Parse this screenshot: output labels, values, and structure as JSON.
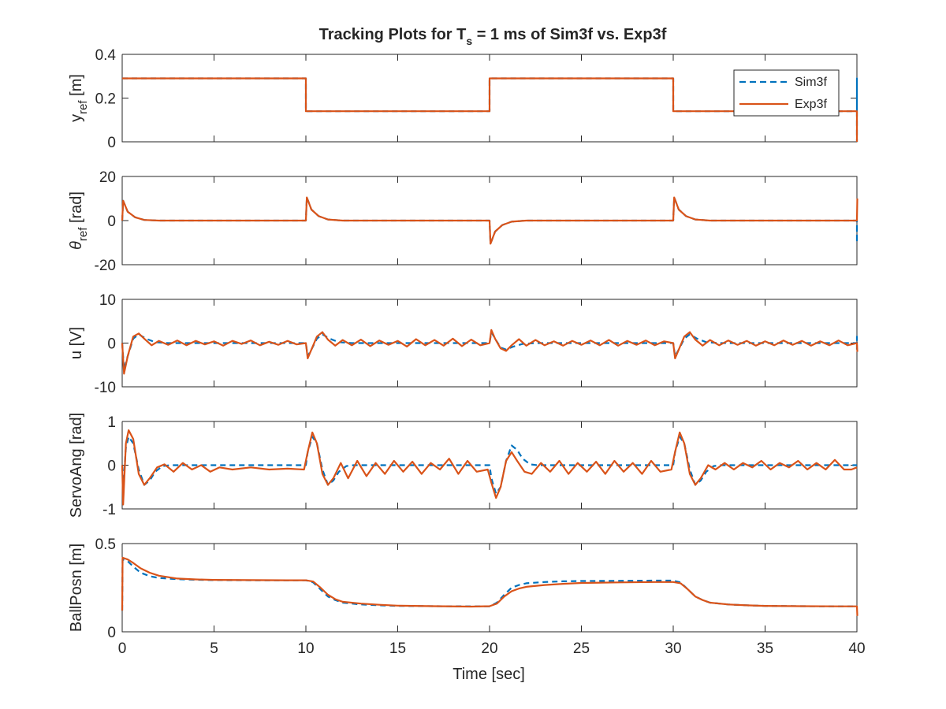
{
  "title": {
    "main": "Tracking Plots for T",
    "sub": "s",
    "rest": " = 1 ms of Sim3f vs. Exp3f"
  },
  "colors": {
    "Sim3f": "#0072BD",
    "Exp3f": "#D95319",
    "axis": "#262626",
    "background": "#ffffff"
  },
  "legend": {
    "placement": "top-right",
    "entries": [
      {
        "label": "Sim3f",
        "style": "dashed"
      },
      {
        "label": "Exp3f",
        "style": "solid"
      }
    ]
  },
  "xaxis": {
    "label": "Time [sec]",
    "ticks": [
      "0",
      "5",
      "10",
      "15",
      "20",
      "25",
      "30",
      "35",
      "40"
    ]
  },
  "panels": [
    {
      "ylabel_main": "y",
      "ylabel_sub": "ref",
      "ylabel_rest": " [m]",
      "yticks": [
        "0",
        "0.2",
        "0.4"
      ]
    },
    {
      "ylabel_main": "θ",
      "ylabel_sub": "ref",
      "ylabel_rest": " [rad]",
      "yticks": [
        "-20",
        "0",
        "20"
      ]
    },
    {
      "ylabel_main": "u [V]",
      "ylabel_sub": "",
      "ylabel_rest": "",
      "yticks": [
        "-10",
        "0",
        "10"
      ]
    },
    {
      "ylabel_main": "ServoAng [rad]",
      "ylabel_sub": "",
      "ylabel_rest": "",
      "yticks": [
        "-1",
        "0",
        "1"
      ]
    },
    {
      "ylabel_main": "BallPosn [m]",
      "ylabel_sub": "",
      "ylabel_rest": "",
      "yticks": [
        "0",
        "0.5"
      ]
    }
  ],
  "chart_data": [
    {
      "type": "line",
      "ylabel": "y_ref [m]",
      "xlim": [
        0,
        40
      ],
      "ylim": [
        0,
        0.4
      ],
      "grid": false,
      "series": [
        {
          "name": "Sim3f",
          "x": [
            0,
            10,
            10,
            20,
            20,
            30,
            30,
            40,
            40,
            40
          ],
          "y": [
            0.29,
            0.29,
            0.14,
            0.14,
            0.29,
            0.29,
            0.14,
            0.14,
            0.29,
            0
          ]
        },
        {
          "name": "Exp3f",
          "x": [
            0,
            10,
            10,
            20,
            20,
            30,
            30,
            40,
            40
          ],
          "y": [
            0.29,
            0.29,
            0.14,
            0.14,
            0.29,
            0.29,
            0.14,
            0.14,
            0
          ]
        }
      ]
    },
    {
      "type": "line",
      "ylabel": "theta_ref [rad]",
      "xlim": [
        0,
        40
      ],
      "ylim": [
        -20,
        20
      ],
      "grid": false,
      "series": [
        {
          "name": "Sim3f",
          "x": [
            0,
            0.05,
            0.3,
            0.7,
            1.2,
            2,
            10,
            10.05,
            10.3,
            10.7,
            11.2,
            12,
            20,
            20.05,
            20.3,
            20.7,
            21.2,
            22,
            30,
            30.05,
            30.3,
            30.7,
            31.2,
            32,
            40,
            40,
            40
          ],
          "y": [
            0,
            9,
            4,
            1.5,
            0.3,
            0,
            0,
            10.5,
            5,
            2,
            0.5,
            0,
            0,
            -10.5,
            -5,
            -2,
            -0.5,
            0,
            0,
            10.5,
            5,
            2,
            0.5,
            0,
            0,
            -10,
            0
          ]
        },
        {
          "name": "Exp3f",
          "x": [
            0,
            0.05,
            0.3,
            0.7,
            1.2,
            2,
            10,
            10.05,
            10.3,
            10.7,
            11.2,
            12,
            20,
            20.05,
            20.3,
            20.7,
            21.2,
            22,
            30,
            30.05,
            30.3,
            30.7,
            31.2,
            32,
            40,
            40.02
          ],
          "y": [
            0,
            9,
            4,
            1.5,
            0.3,
            0,
            0,
            10.5,
            5,
            2,
            0.5,
            0,
            0,
            -10.5,
            -5,
            -2,
            -0.5,
            0,
            0,
            10.5,
            5,
            2,
            0.5,
            0,
            0,
            10
          ]
        }
      ]
    },
    {
      "type": "line",
      "ylabel": "u [V]",
      "xlim": [
        0,
        40
      ],
      "ylim": [
        -10,
        10
      ],
      "grid": false,
      "series": [
        {
          "name": "Sim3f",
          "x": [
            0,
            0.1,
            0.3,
            0.6,
            0.9,
            1.3,
            1.8,
            2.5,
            10,
            10.1,
            10.3,
            10.6,
            10.9,
            11.3,
            11.8,
            12.5,
            20,
            20.1,
            20.3,
            20.6,
            20.9,
            21.3,
            21.8,
            22.5,
            30,
            30.1,
            30.3,
            30.6,
            30.9,
            31.3,
            31.8,
            32.5,
            40,
            40,
            40
          ],
          "y": [
            0,
            -6,
            -3,
            1,
            2,
            1,
            0.2,
            0,
            0,
            -3,
            -1.5,
            1,
            2,
            1,
            0.2,
            0,
            0,
            2.5,
            1,
            -1,
            -1.5,
            -0.8,
            -0.2,
            0,
            0,
            -3,
            -1.5,
            1,
            2,
            1,
            0.2,
            0,
            0,
            1.5,
            -1.5
          ]
        },
        {
          "name": "Exp3f",
          "x": [
            0,
            0.1,
            0.3,
            0.6,
            0.9,
            1.2,
            1.6,
            2.0,
            2.5,
            3,
            3.5,
            4,
            4.5,
            5,
            5.5,
            6,
            6.5,
            7,
            7.5,
            8,
            8.5,
            9,
            9.5,
            10,
            10.1,
            10.3,
            10.6,
            10.9,
            11.2,
            11.6,
            12,
            12.5,
            13,
            13.5,
            14,
            14.5,
            15,
            15.5,
            16,
            16.5,
            17,
            17.5,
            18,
            18.5,
            19,
            19.5,
            20,
            20.1,
            20.3,
            20.6,
            20.9,
            21.2,
            21.6,
            22,
            22.5,
            23,
            23.5,
            24,
            24.5,
            25,
            25.5,
            26,
            26.5,
            27,
            27.5,
            28,
            28.5,
            29,
            29.5,
            30,
            30.1,
            30.3,
            30.6,
            30.9,
            31.2,
            31.6,
            32,
            32.5,
            33,
            33.5,
            34,
            34.5,
            35,
            35.5,
            36,
            36.5,
            37,
            37.5,
            38,
            38.5,
            39,
            39.5,
            40,
            40.02
          ],
          "y": [
            0,
            -7,
            -3,
            1.5,
            2.2,
            1,
            -0.5,
            0.5,
            -0.4,
            0.6,
            -0.5,
            0.5,
            -0.3,
            0.4,
            -0.6,
            0.5,
            -0.2,
            0.6,
            -0.5,
            0.3,
            -0.4,
            0.5,
            -0.3,
            0,
            -3.5,
            -1.5,
            1.5,
            2.5,
            0.8,
            -0.6,
            0.7,
            -0.5,
            0.8,
            -0.7,
            0.6,
            -0.4,
            0.5,
            -0.8,
            0.9,
            -0.5,
            0.7,
            -0.6,
            1.0,
            -0.7,
            0.8,
            -0.5,
            0,
            3,
            1,
            -1.2,
            -1.8,
            -0.5,
            0.9,
            -0.6,
            0.7,
            -0.5,
            0.4,
            -0.6,
            0.5,
            -0.4,
            0.6,
            -0.5,
            0.7,
            -0.6,
            0.5,
            -0.4,
            0.6,
            -0.5,
            0.4,
            0,
            -3.5,
            -1.5,
            1.5,
            2.5,
            0.8,
            -0.6,
            0.7,
            -0.5,
            0.6,
            -0.4,
            0.5,
            -0.6,
            0.4,
            -0.5,
            0.6,
            -0.4,
            0.5,
            -0.6,
            0.4,
            -0.5,
            0.6,
            -0.5,
            0,
            -2
          ]
        }
      ]
    },
    {
      "type": "line",
      "ylabel": "ServoAng [rad]",
      "xlim": [
        0,
        40
      ],
      "ylim": [
        -1,
        1
      ],
      "grid": false,
      "series": [
        {
          "name": "Sim3f",
          "x": [
            0,
            0.05,
            0.2,
            0.35,
            0.6,
            0.9,
            1.2,
            1.5,
            1.8,
            2.2,
            2.6,
            10,
            10.1,
            10.35,
            10.6,
            10.9,
            11.2,
            11.5,
            11.8,
            12.2,
            12.6,
            20,
            20.1,
            20.35,
            20.6,
            20.9,
            21.2,
            21.5,
            21.8,
            22.2,
            22.6,
            30,
            30.1,
            30.35,
            30.6,
            30.9,
            31.2,
            31.5,
            31.8,
            32.2,
            32.6,
            40
          ],
          "y": [
            0,
            -0.5,
            0.4,
            0.65,
            0.5,
            -0.1,
            -0.45,
            -0.35,
            -0.15,
            -0.02,
            0,
            0,
            0.3,
            0.65,
            0.5,
            -0.1,
            -0.45,
            -0.35,
            -0.15,
            -0.02,
            0,
            0,
            -0.3,
            -0.65,
            -0.5,
            0.1,
            0.45,
            0.35,
            0.15,
            0.02,
            0,
            0,
            0.3,
            0.65,
            0.5,
            -0.1,
            -0.45,
            -0.35,
            -0.15,
            -0.02,
            0,
            0
          ]
        },
        {
          "name": "Exp3f",
          "x": [
            0,
            0.05,
            0.2,
            0.35,
            0.6,
            0.9,
            1.2,
            1.5,
            1.9,
            2.3,
            2.8,
            3.3,
            3.8,
            4.3,
            4.8,
            5.3,
            6,
            7,
            8,
            9,
            9.9,
            10.1,
            10.35,
            10.6,
            10.9,
            11.2,
            11.5,
            11.9,
            12.3,
            12.8,
            13.3,
            13.8,
            14.3,
            14.8,
            15.3,
            15.8,
            16.3,
            16.8,
            17.3,
            17.8,
            18.3,
            18.8,
            19.3,
            19.9,
            20.1,
            20.35,
            20.6,
            20.9,
            21.2,
            21.5,
            21.9,
            22.3,
            22.8,
            23.3,
            23.8,
            24.3,
            24.8,
            25.3,
            25.8,
            26.3,
            26.8,
            27.3,
            27.8,
            28.3,
            28.8,
            29.3,
            29.9,
            30.1,
            30.35,
            30.6,
            30.9,
            31.2,
            31.5,
            31.9,
            32.3,
            32.8,
            33.3,
            33.8,
            34.3,
            34.8,
            35.3,
            35.8,
            36.3,
            36.8,
            37.3,
            37.8,
            38.3,
            38.8,
            39.3,
            39.7,
            40
          ],
          "y": [
            0,
            -0.9,
            0.5,
            0.8,
            0.6,
            -0.2,
            -0.45,
            -0.3,
            -0.05,
            0.02,
            -0.15,
            0.05,
            -0.1,
            0.0,
            -0.15,
            -0.05,
            -0.1,
            -0.05,
            -0.1,
            -0.08,
            -0.1,
            0.3,
            0.75,
            0.5,
            -0.2,
            -0.45,
            -0.3,
            0.05,
            -0.3,
            0.1,
            -0.25,
            0.05,
            -0.2,
            0.1,
            -0.15,
            0.08,
            -0.2,
            0.05,
            -0.1,
            0.15,
            -0.2,
            0.1,
            -0.15,
            -0.1,
            -0.4,
            -0.75,
            -0.5,
            0.1,
            0.3,
            0.1,
            -0.15,
            -0.2,
            0.05,
            -0.15,
            0.1,
            -0.2,
            0.05,
            -0.15,
            0.08,
            -0.2,
            0.1,
            -0.15,
            0.05,
            -0.2,
            0.1,
            -0.15,
            -0.1,
            0.3,
            0.75,
            0.5,
            -0.2,
            -0.45,
            -0.3,
            0.0,
            -0.1,
            0.05,
            -0.1,
            0.05,
            -0.05,
            0.1,
            -0.1,
            0.05,
            -0.05,
            0.1,
            -0.1,
            0.05,
            -0.1,
            0.12,
            -0.1,
            -0.1,
            -0.05
          ]
        }
      ]
    },
    {
      "type": "line",
      "ylabel": "BallPosn [m]",
      "xlim": [
        0,
        40
      ],
      "ylim": [
        0,
        0.5
      ],
      "grid": false,
      "series": [
        {
          "name": "Sim3f",
          "x": [
            0,
            0.02,
            0.3,
            0.6,
            1,
            1.5,
            2,
            3,
            4,
            5,
            7,
            9,
            10,
            10.4,
            10.8,
            11.2,
            11.6,
            12,
            13,
            14,
            15,
            17,
            19,
            20,
            20.4,
            20.8,
            21.2,
            21.6,
            22,
            23,
            24,
            25,
            27,
            29,
            30,
            30.4,
            30.8,
            31.2,
            31.6,
            32,
            33,
            34,
            35,
            37,
            39,
            40
          ],
          "y": [
            0.12,
            0.41,
            0.4,
            0.37,
            0.335,
            0.315,
            0.305,
            0.298,
            0.295,
            0.293,
            0.292,
            0.292,
            0.292,
            0.28,
            0.24,
            0.2,
            0.18,
            0.165,
            0.155,
            0.15,
            0.147,
            0.145,
            0.144,
            0.144,
            0.165,
            0.21,
            0.25,
            0.265,
            0.275,
            0.282,
            0.286,
            0.288,
            0.289,
            0.29,
            0.29,
            0.28,
            0.24,
            0.2,
            0.18,
            0.165,
            0.155,
            0.15,
            0.147,
            0.145,
            0.144,
            0.144
          ]
        },
        {
          "name": "Exp3f",
          "x": [
            0,
            0.02,
            0.3,
            0.6,
            1,
            1.5,
            2,
            3,
            4,
            5,
            7,
            9,
            10,
            10.4,
            10.8,
            11.2,
            11.6,
            12,
            13,
            14,
            15,
            17,
            19,
            20,
            20.4,
            20.8,
            21.2,
            21.6,
            22,
            23,
            24,
            25,
            27,
            29,
            30,
            30.4,
            30.8,
            31.2,
            31.6,
            32,
            33,
            34,
            35,
            37,
            39,
            40,
            40.02
          ],
          "y": [
            0.12,
            0.42,
            0.41,
            0.39,
            0.36,
            0.335,
            0.318,
            0.302,
            0.297,
            0.294,
            0.293,
            0.292,
            0.292,
            0.285,
            0.25,
            0.21,
            0.185,
            0.17,
            0.16,
            0.153,
            0.148,
            0.145,
            0.143,
            0.145,
            0.16,
            0.2,
            0.23,
            0.245,
            0.255,
            0.265,
            0.272,
            0.277,
            0.28,
            0.282,
            0.282,
            0.275,
            0.24,
            0.2,
            0.18,
            0.165,
            0.155,
            0.15,
            0.147,
            0.145,
            0.144,
            0.144,
            0.09
          ]
        }
      ]
    }
  ]
}
